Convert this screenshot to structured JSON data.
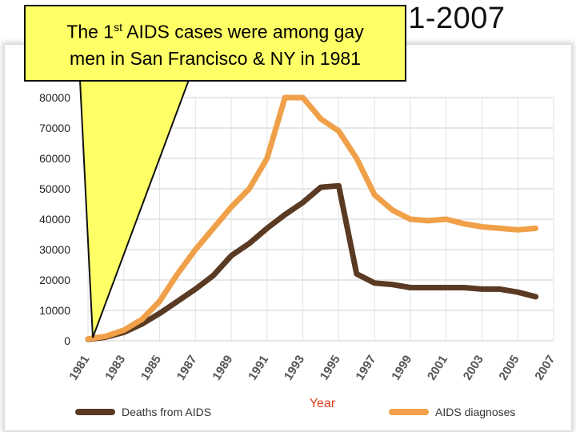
{
  "slide": {
    "title": "HIV/AIDS Statistics, 1981-2007",
    "callout_line1_prefix": "The 1",
    "callout_sup": "st",
    "callout_line1_suffix": " AIDS cases were among gay",
    "callout_line2": "men in San Francisco & NY in 1981",
    "callout_color": "#ffff66"
  },
  "chart_data": {
    "type": "line",
    "title": "",
    "xlabel": "Year",
    "ylabel": "",
    "xlim": [
      1981,
      2007
    ],
    "ylim": [
      0,
      80000
    ],
    "yticks": [
      0,
      10000,
      20000,
      30000,
      40000,
      50000,
      60000,
      70000,
      80000
    ],
    "xtick_labels": [
      "1981",
      "1983",
      "1985",
      "1987",
      "1989",
      "1991",
      "1993",
      "1995",
      "1997",
      "1999",
      "2001",
      "2003",
      "2005",
      "2007"
    ],
    "grid": true,
    "legend_position": "bottom",
    "series": [
      {
        "name": "Deaths from AIDS",
        "color": "#5a3a22",
        "x": [
          1981,
          1982,
          1983,
          1984,
          1985,
          1986,
          1987,
          1988,
          1989,
          1990,
          1991,
          1992,
          1993,
          1994,
          1995,
          1996,
          1997,
          1998,
          1999,
          2000,
          2001,
          2002,
          2003,
          2004,
          2005,
          2006
        ],
        "y": [
          500,
          1200,
          2800,
          5500,
          9000,
          13000,
          17000,
          21500,
          28000,
          32000,
          37000,
          41500,
          45500,
          50500,
          51000,
          22000,
          19000,
          18500,
          17500,
          17500,
          17500,
          17500,
          17000,
          17000,
          16000,
          14500
        ]
      },
      {
        "name": "AIDS diagnoses",
        "color": "#f0a048",
        "x": [
          1981,
          1982,
          1983,
          1984,
          1985,
          1986,
          1987,
          1988,
          1989,
          1990,
          1991,
          1992,
          1993,
          1994,
          1995,
          1996,
          1997,
          1998,
          1999,
          2000,
          2001,
          2002,
          2003,
          2004,
          2005,
          2006
        ],
        "y": [
          600,
          1500,
          3500,
          7000,
          13000,
          22000,
          30000,
          37000,
          44000,
          50000,
          60000,
          80000,
          80000,
          73000,
          69000,
          60000,
          48000,
          43000,
          40000,
          39500,
          40000,
          38500,
          37500,
          37000,
          36500,
          37000
        ]
      }
    ]
  }
}
